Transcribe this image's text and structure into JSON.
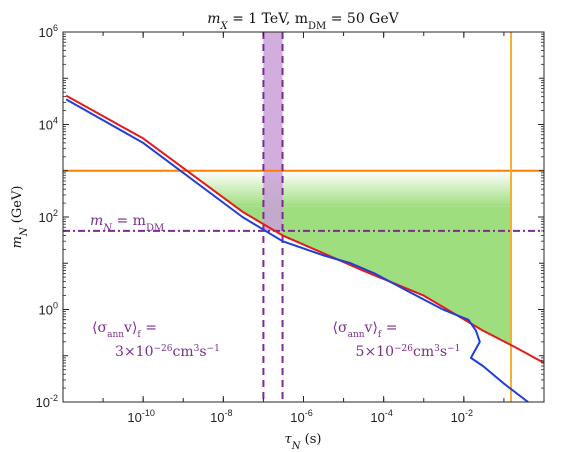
{
  "chart_data": {
    "type": "line",
    "title_parts": {
      "lead": "m",
      "sub1": "X",
      "mid": " = 1 TeV, m",
      "sub2": "DM",
      "tail": " = 50 GeV"
    },
    "xlabel_parts": {
      "sym": "τ",
      "sub": "N",
      "unit": " (s)"
    },
    "ylabel_parts": {
      "sym": "m",
      "sub": "N",
      "unit": " (GeV)"
    },
    "xscale": "log",
    "yscale": "log",
    "xlim": [
      1e-12,
      1
    ],
    "ylim": [
      0.01,
      1000000
    ],
    "grid": false,
    "xticks": [
      {
        "value": 1e-10,
        "base": "10",
        "exp": "-10"
      },
      {
        "value": 1e-08,
        "base": "10",
        "exp": "-8"
      },
      {
        "value": 1e-06,
        "base": "10",
        "exp": "-6"
      },
      {
        "value": 0.0001,
        "base": "10",
        "exp": "-4"
      },
      {
        "value": 0.01,
        "base": "10",
        "exp": "-2"
      }
    ],
    "yticks": [
      {
        "value": 0.01,
        "base": "10",
        "exp": "-2"
      },
      {
        "value": 1,
        "base": "10",
        "exp": "0"
      },
      {
        "value": 100,
        "base": "10",
        "exp": "2"
      },
      {
        "value": 10000,
        "base": "10",
        "exp": "4"
      },
      {
        "value": 1000000,
        "base": "10",
        "exp": "6"
      }
    ],
    "series": [
      {
        "color": "#e41a1c",
        "x": [
          1.2e-12,
          1e-10,
          3e-08,
          3e-07,
          3e-05,
          0.001,
          0.03,
          0.2,
          1
        ],
        "y": [
          42000,
          5000,
          130,
          40,
          7,
          2,
          0.35,
          0.15,
          0.07
        ]
      },
      {
        "color": "#1f3fd6",
        "x": [
          1.2e-12,
          1e-10,
          3e-08,
          3e-07,
          3e-06,
          1.5e-05,
          6e-05,
          0.0004,
          0.003,
          0.013,
          0.02,
          0.025,
          0.018,
          0.015,
          0.03,
          0.1,
          0.4
        ],
        "y": [
          35000,
          4000,
          100,
          30,
          15,
          10,
          6,
          2.5,
          1,
          0.6,
          0.35,
          0.2,
          0.12,
          0.09,
          0.06,
          0.025,
          0.01
        ]
      }
    ],
    "horizontal_lines": [
      {
        "y": 1000,
        "color": "#ff7f00",
        "style": "solid"
      },
      {
        "y": 50,
        "color": "#7b2d8e",
        "style": "dash-dot",
        "label": {
          "lead": "m",
          "sub1": "N",
          "mid": " = m",
          "sub2": "DM"
        }
      }
    ],
    "vertical_lines": [
      {
        "x": 1e-07,
        "color": "#7b2d8e",
        "style": "dashed"
      },
      {
        "x": 3e-07,
        "color": "#7b2d8e",
        "style": "dashed"
      },
      {
        "x": 0.15,
        "color": "#f0b030",
        "style": "solid"
      }
    ],
    "vertical_band": {
      "x": [
        1e-07,
        3e-07
      ],
      "y_min": 50,
      "color": "#c9a0d8"
    },
    "allowed_region_color": "#9fde7f",
    "annotations": [
      {
        "x": 4e-13,
        "y": 0.2,
        "sigma": "⟨σ",
        "sub_ann": "ann",
        "v": "v⟩",
        "sub_f": "f",
        "eq": " =",
        "coef": "3×10",
        "exp": "−26",
        "unit": "cm",
        "unit_exp": "3",
        "unit2": "s",
        "unit2_exp": "−1"
      },
      {
        "x": 4e-07,
        "y": 0.2,
        "sigma": "⟨σ",
        "sub_ann": "ann",
        "v": "v⟩",
        "sub_f": "f",
        "eq": " =",
        "coef": "5×10",
        "exp": "−26",
        "unit": "cm",
        "unit_exp": "3",
        "unit2": "s",
        "unit2_exp": "−1"
      }
    ]
  }
}
